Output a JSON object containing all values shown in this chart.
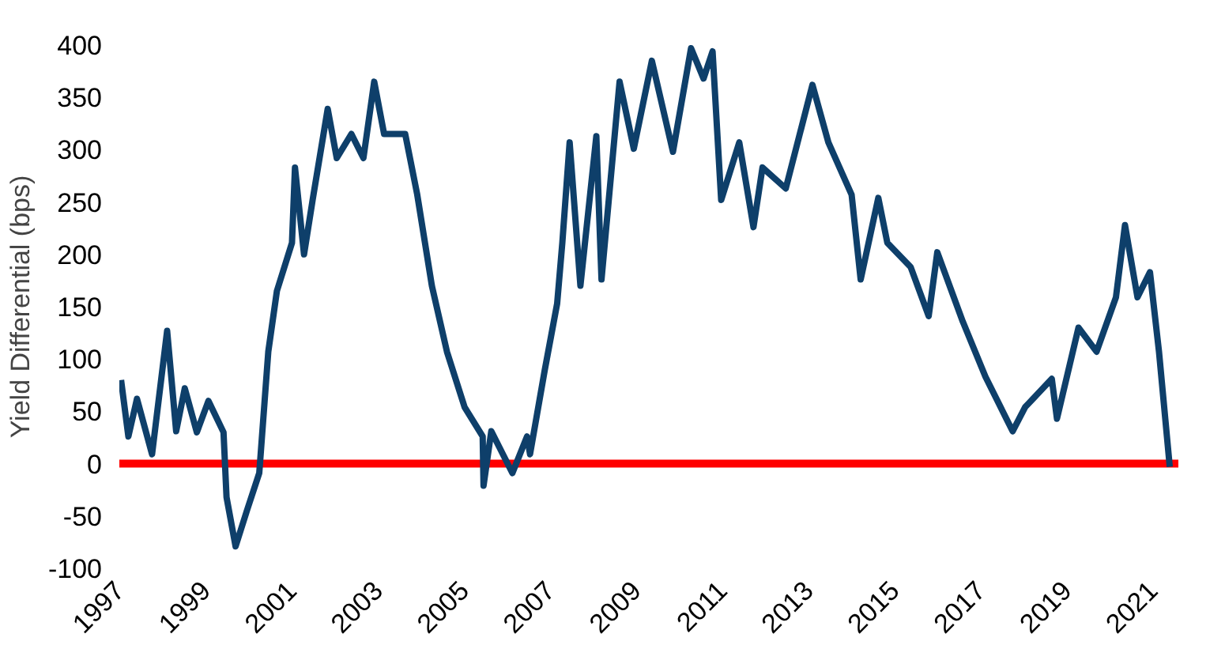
{
  "chart_data": {
    "type": "line",
    "ylabel": "Yield Differential (bps)",
    "x": [
      1997.04,
      1997.21,
      1997.41,
      1997.76,
      1998.11,
      1998.32,
      1998.52,
      1998.8,
      1999.07,
      1999.42,
      1999.49,
      1999.7,
      1999.97,
      2000.25,
      2000.46,
      2000.66,
      2001.01,
      2001.08,
      2001.29,
      2001.49,
      2001.84,
      2002.05,
      2002.39,
      2002.67,
      2002.92,
      2003.15,
      2003.64,
      2003.92,
      2004.26,
      2004.61,
      2005.02,
      2005.44,
      2005.46,
      2005.64,
      2006.13,
      2006.47,
      2006.54,
      2006.88,
      2007.17,
      2007.29,
      2007.46,
      2007.71,
      2008.08,
      2008.2,
      2008.62,
      2008.95,
      2009.37,
      2009.86,
      2010.28,
      2010.57,
      2010.78,
      2010.98,
      2011.4,
      2011.73,
      2011.94,
      2012.48,
      2013.1,
      2013.47,
      2014.01,
      2014.22,
      2014.63,
      2014.84,
      2015.38,
      2015.8,
      2016.0,
      2016.59,
      2017.12,
      2017.75,
      2018.04,
      2018.66,
      2018.78,
      2019.28,
      2019.7,
      2020.15,
      2020.36,
      2020.65,
      2020.94,
      2021.15,
      2021.4
    ],
    "series": [
      {
        "color": "#0e3f6a",
        "values": [
          80,
          26,
          62,
          9,
          127,
          31,
          72,
          30,
          60,
          30,
          -32,
          -79,
          -44,
          -9,
          107,
          165,
          211,
          283,
          200,
          252,
          339,
          292,
          315,
          292,
          365,
          315,
          315,
          257,
          170,
          107,
          54,
          26,
          -21,
          31,
          -9,
          26,
          9,
          89,
          153,
          211,
          307,
          170,
          313,
          176,
          365,
          301,
          385,
          298,
          397,
          368,
          394,
          252,
          307,
          226,
          283,
          263,
          362,
          307,
          257,
          176,
          254,
          211,
          188,
          141,
          202,
          136,
          83,
          31,
          54,
          81,
          43,
          130,
          107,
          159,
          228,
          159,
          183,
          107,
          -3
        ]
      }
    ],
    "xlim": [
      1997,
      2021.6
    ],
    "ylim": [
      -100,
      400
    ],
    "xticks": [
      1997,
      1999,
      2001,
      2003,
      2005,
      2007,
      2009,
      2011,
      2013,
      2015,
      2017,
      2019,
      2021
    ],
    "yticks": [
      -100,
      -50,
      0,
      50,
      100,
      150,
      200,
      250,
      300,
      350,
      400
    ],
    "ref_lines": [
      {
        "axis": "y",
        "value": 0,
        "color": "#ff0000"
      }
    ]
  }
}
